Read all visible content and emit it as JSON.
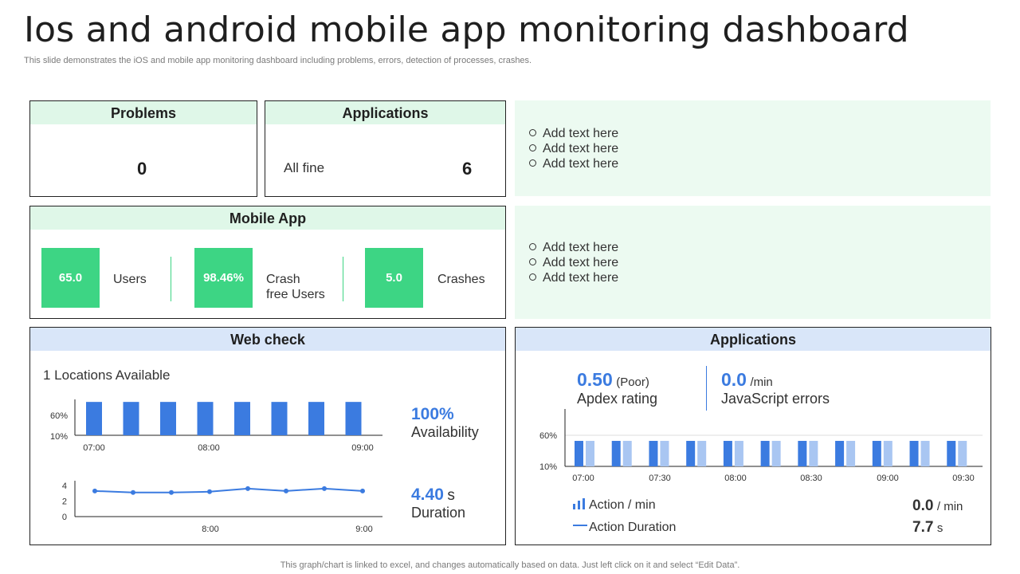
{
  "title": "Ios and android mobile app monitoring dashboard",
  "subtitle": "This slide demonstrates the iOS and mobile app monitoring dashboard including problems, errors, detection of processes, crashes.",
  "footer": "This graph/chart is linked to excel,  and changes automatically based on data. Just left click on it and select “Edit Data”.",
  "colors": {
    "green": "#3dd584",
    "green_light": "#dff7e8",
    "blue": "#3b7be0",
    "blue_light": "#a9c6f2",
    "blue_head": "#d9e6f9"
  },
  "problems": {
    "title": "Problems",
    "value": "0"
  },
  "applications_top": {
    "title": "Applications",
    "status": "All fine",
    "value": "6"
  },
  "notes_top": [
    "Add text here",
    "Add text here",
    "Add text here"
  ],
  "notes_mid": [
    "Add text here",
    "Add text here",
    "Add text here"
  ],
  "mobile_app": {
    "title": "Mobile App",
    "tiles": [
      {
        "value": "65.0",
        "label_1": "Users",
        "label_2": ""
      },
      {
        "value": "98.46%",
        "label_1": "Crash",
        "label_2": "free Users"
      },
      {
        "value": "5.0",
        "label_1": "Crashes",
        "label_2": ""
      }
    ]
  },
  "web_check": {
    "title": "Web check",
    "locations": "1 Locations Available",
    "availability_value": "100%",
    "availability_label": "Availability",
    "duration_value": "4.40",
    "duration_unit": "s",
    "duration_label": "Duration"
  },
  "applications_bottom": {
    "title": "Applications",
    "apdex_value": "0.50",
    "apdex_note": "(Poor)",
    "apdex_label": "Apdex rating",
    "js_value": "0.0",
    "js_unit": "/min",
    "js_label": "JavaScript errors",
    "legend_action": "Action / min",
    "legend_duration": "Action Duration",
    "action_value": "0.0",
    "action_unit": "/ min",
    "duration_value": "7.7",
    "duration_unit": "s"
  },
  "chart_data": [
    {
      "type": "bar",
      "yticks": [
        "60%",
        "10%"
      ],
      "xticks": [
        "07:00",
        "08:00",
        "09:00"
      ],
      "values": [
        60,
        60,
        60,
        60,
        60,
        60,
        60,
        60
      ]
    },
    {
      "type": "line",
      "yticks": [
        "4",
        "2",
        "0"
      ],
      "xticks": [
        "8:00",
        "9:00"
      ],
      "ylim": [
        0,
        4
      ],
      "values": [
        3.3,
        3.1,
        3.1,
        3.2,
        3.6,
        3.3,
        3.6,
        3.3
      ]
    },
    {
      "type": "bar",
      "yticks": [
        "60%",
        "10%"
      ],
      "xticks": [
        "07:00",
        "07:30",
        "08:00",
        "08:30",
        "09:00",
        "09:30"
      ],
      "series": [
        {
          "values": [
            50,
            50,
            50,
            50,
            50,
            50,
            50,
            50,
            50,
            50,
            50
          ]
        },
        {
          "values": [
            50,
            50,
            50,
            50,
            50,
            50,
            50,
            50,
            50,
            50,
            50
          ]
        }
      ]
    }
  ]
}
